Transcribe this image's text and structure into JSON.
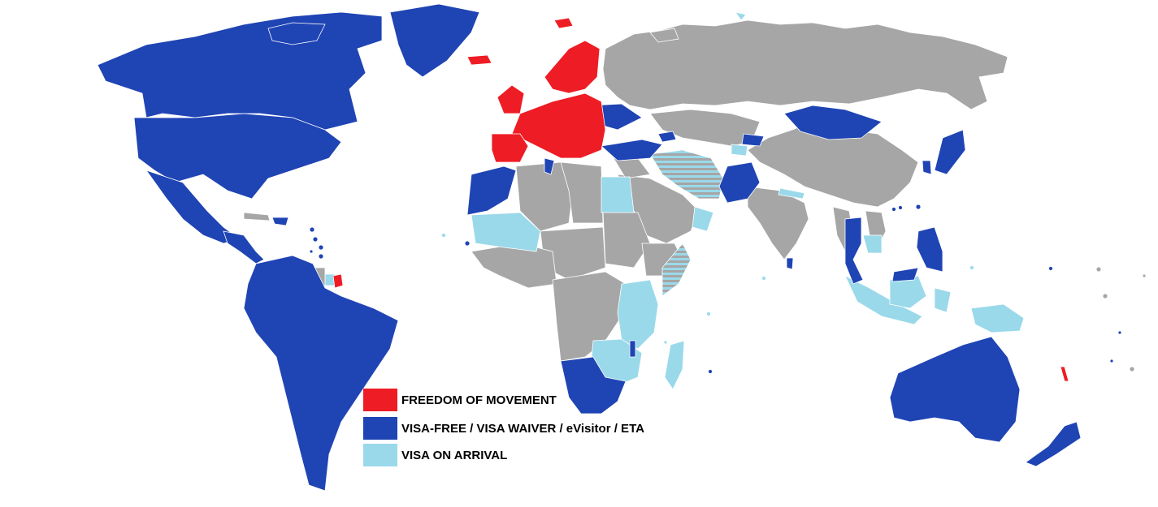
{
  "legend": {
    "items": [
      {
        "key": "freedom",
        "label": "FREEDOM OF MOVEMENT",
        "color": "#ee1c24"
      },
      {
        "key": "visa_free",
        "label": "VISA-FREE / VISA WAIVER / eVisitor / ETA",
        "color": "#1f44b4"
      },
      {
        "key": "on_arrival",
        "label": "VISA ON ARRIVAL",
        "color": "#9ad9ea"
      }
    ]
  },
  "colors": {
    "visa_required": "#a6a6a6",
    "border": "#ffffff",
    "ocean": "#ffffff"
  }
}
